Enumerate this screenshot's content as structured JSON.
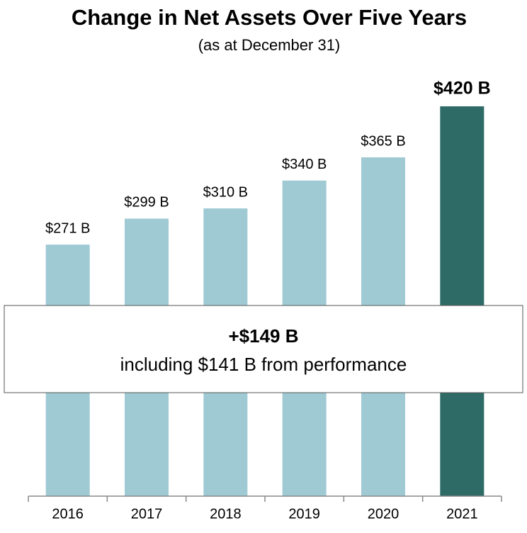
{
  "chart_data": {
    "type": "bar",
    "title": "Change in Net Assets Over Five Years",
    "subtitle": "(as at December 31)",
    "categories": [
      "2016",
      "2017",
      "2018",
      "2019",
      "2020",
      "2021"
    ],
    "values": [
      271,
      299,
      310,
      340,
      365,
      420
    ],
    "value_labels": [
      "$271 B",
      "$299 B",
      "$310 B",
      "$340 B",
      "$365 B",
      "$420 B"
    ],
    "colors": [
      "#9fcad4",
      "#9fcad4",
      "#9fcad4",
      "#9fcad4",
      "#9fcad4",
      "#2e6b67"
    ],
    "ylim": [
      0,
      420
    ],
    "annotation": {
      "title": "+$149 B",
      "text": "including $141 B from performance"
    }
  }
}
